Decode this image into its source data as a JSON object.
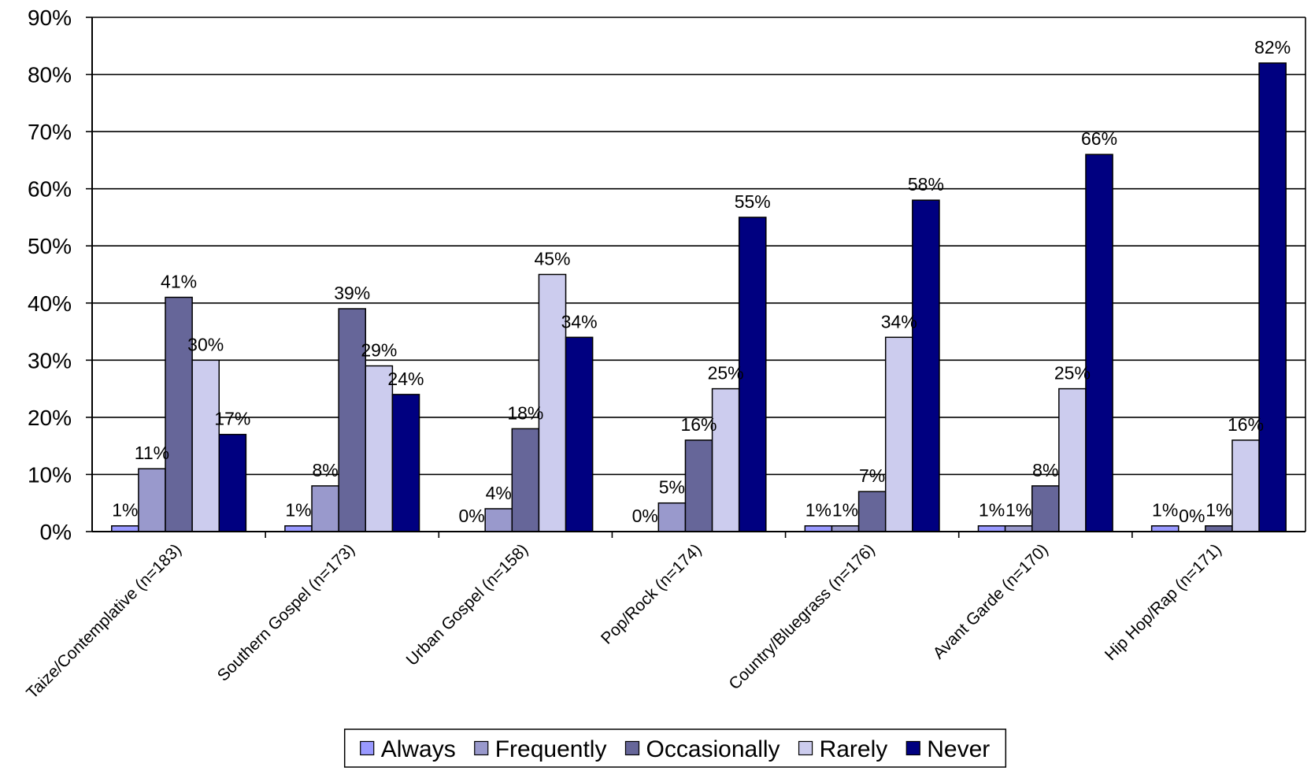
{
  "chart_data": {
    "type": "bar",
    "categories": [
      "Taize/Contemplative (n=183)",
      "Southern Gospel (n=173)",
      "Urban Gospel (n=158)",
      "Pop/Rock (n=174)",
      "Country/Bluegrass (n=176)",
      "Avant Garde (n=170)",
      "Hip Hop/Rap (n=171)"
    ],
    "series": [
      {
        "name": "Always",
        "color": "#9999ff",
        "values": [
          1,
          1,
          0,
          0,
          1,
          1,
          1
        ]
      },
      {
        "name": "Frequently",
        "color": "#9999cc",
        "values": [
          11,
          8,
          4,
          5,
          1,
          1,
          0
        ]
      },
      {
        "name": "Occasionally",
        "color": "#666699",
        "values": [
          41,
          39,
          18,
          16,
          7,
          8,
          1
        ]
      },
      {
        "name": "Rarely",
        "color": "#ccccee",
        "values": [
          30,
          29,
          45,
          25,
          34,
          25,
          16
        ]
      },
      {
        "name": "Never",
        "color": "#000080",
        "values": [
          17,
          24,
          34,
          55,
          58,
          66,
          82
        ]
      }
    ],
    "value_suffix": "%",
    "yticks": [
      "0%",
      "10%",
      "20%",
      "30%",
      "40%",
      "50%",
      "60%",
      "70%",
      "80%",
      "90%"
    ],
    "ylim": [
      0,
      90
    ],
    "grid": true,
    "legend_position": "bottom",
    "title": "",
    "xlabel": "",
    "ylabel": ""
  }
}
